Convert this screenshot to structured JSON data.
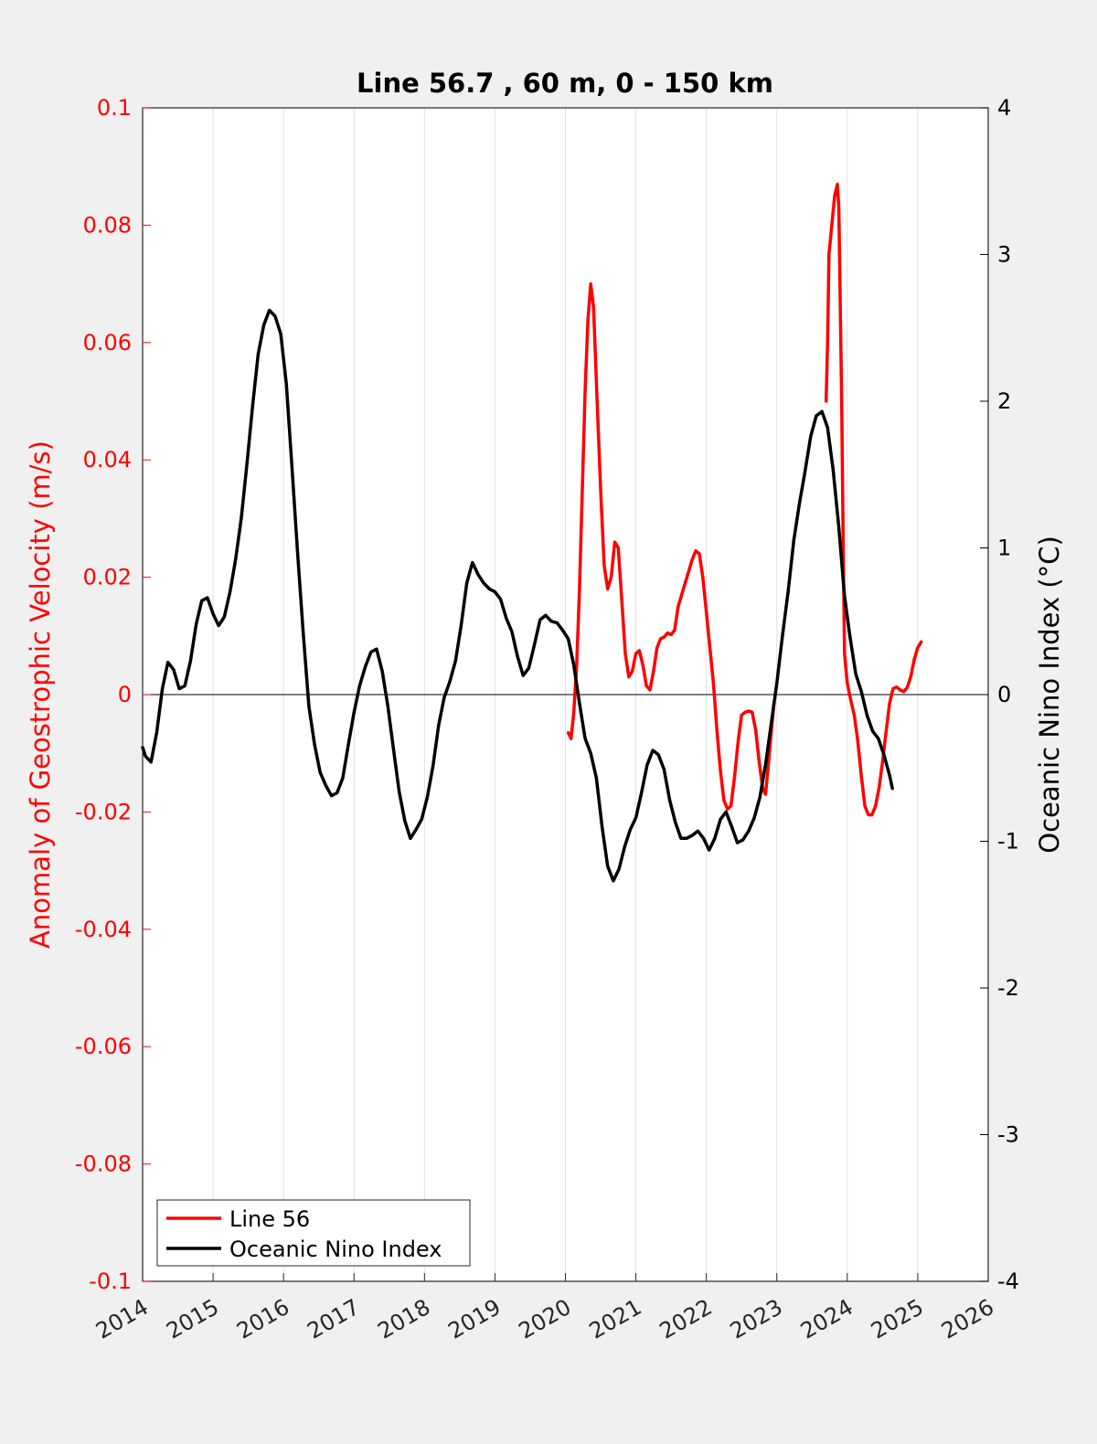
{
  "chart_data": {
    "type": "line",
    "title": "Line 56.7 , 60 m, 0 - 150 km",
    "xlim": [
      2014,
      2026
    ],
    "x_ticks": [
      "2014",
      "2015",
      "2016",
      "2017",
      "2018",
      "2019",
      "2020",
      "2021",
      "2022",
      "2023",
      "2024",
      "2025",
      "2026"
    ],
    "grid": "vertical",
    "legend_position": "bottom-left",
    "y_left": {
      "label": "Anomaly of Geostrophic Velocity (m/s)",
      "lim": [
        -0.1,
        0.1
      ],
      "ticks": [
        "0.1",
        "0.08",
        "0.06",
        "0.04",
        "0.02",
        "0",
        "-0.02",
        "-0.04",
        "-0.06",
        "-0.08",
        "-0.1"
      ],
      "color": "#ff0000"
    },
    "y_right": {
      "label": "Oceanic Nino Index (°C)",
      "lim": [
        -4,
        4
      ],
      "ticks": [
        "4",
        "3",
        "2",
        "1",
        "0",
        "-1",
        "-2",
        "-3",
        "-4"
      ],
      "color": "#000000"
    },
    "series": [
      {
        "name": "Line 56",
        "axis": "left",
        "color": "#ff0000",
        "segments": [
          [
            [
              2020.04,
              -0.0065
            ],
            [
              2020.08,
              -0.0075
            ],
            [
              2020.12,
              -0.003
            ],
            [
              2020.16,
              0.005
            ],
            [
              2020.2,
              0.018
            ],
            [
              2020.24,
              0.035
            ],
            [
              2020.28,
              0.052
            ],
            [
              2020.32,
              0.064
            ],
            [
              2020.36,
              0.07
            ],
            [
              2020.4,
              0.066
            ],
            [
              2020.45,
              0.05
            ],
            [
              2020.5,
              0.035
            ],
            [
              2020.55,
              0.022
            ],
            [
              2020.6,
              0.018
            ],
            [
              2020.65,
              0.02
            ],
            [
              2020.7,
              0.026
            ],
            [
              2020.75,
              0.025
            ],
            [
              2020.8,
              0.016
            ],
            [
              2020.85,
              0.007
            ],
            [
              2020.9,
              0.003
            ],
            [
              2020.95,
              0.004
            ],
            [
              2021.0,
              0.007
            ],
            [
              2021.05,
              0.0075
            ],
            [
              2021.1,
              0.005
            ],
            [
              2021.15,
              0.0015
            ],
            [
              2021.2,
              0.0008
            ],
            [
              2021.25,
              0.004
            ],
            [
              2021.3,
              0.008
            ],
            [
              2021.35,
              0.0095
            ],
            [
              2021.4,
              0.0098
            ],
            [
              2021.45,
              0.0105
            ],
            [
              2021.5,
              0.0102
            ],
            [
              2021.55,
              0.011
            ],
            [
              2021.6,
              0.015
            ],
            [
              2021.7,
              0.019
            ],
            [
              2021.8,
              0.023
            ],
            [
              2021.85,
              0.0245
            ],
            [
              2021.9,
              0.024
            ],
            [
              2021.95,
              0.02
            ],
            [
              2022.0,
              0.014
            ],
            [
              2022.05,
              0.008
            ],
            [
              2022.1,
              0.002
            ],
            [
              2022.15,
              -0.006
            ],
            [
              2022.2,
              -0.013
            ],
            [
              2022.25,
              -0.018
            ],
            [
              2022.3,
              -0.0195
            ],
            [
              2022.35,
              -0.019
            ],
            [
              2022.4,
              -0.014
            ],
            [
              2022.45,
              -0.008
            ],
            [
              2022.5,
              -0.0035
            ],
            [
              2022.55,
              -0.003
            ],
            [
              2022.6,
              -0.0028
            ],
            [
              2022.65,
              -0.003
            ],
            [
              2022.7,
              -0.006
            ],
            [
              2022.75,
              -0.0115
            ],
            [
              2022.8,
              -0.016
            ],
            [
              2022.84,
              -0.017
            ],
            [
              2022.88,
              -0.012
            ],
            [
              2022.92,
              -0.0065
            ],
            [
              2022.96,
              -0.0015
            ]
          ],
          [
            [
              2023.7,
              0.05
            ],
            [
              2023.72,
              0.06
            ],
            [
              2023.74,
              0.075
            ],
            [
              2023.78,
              0.08
            ],
            [
              2023.82,
              0.085
            ],
            [
              2023.86,
              0.087
            ],
            [
              2023.88,
              0.083
            ],
            [
              2023.92,
              0.05
            ],
            [
              2023.94,
              0.028
            ],
            [
              2023.96,
              0.007
            ],
            [
              2024.0,
              0.002
            ],
            [
              2024.05,
              -0.001
            ],
            [
              2024.1,
              -0.0035
            ],
            [
              2024.15,
              -0.008
            ],
            [
              2024.2,
              -0.014
            ],
            [
              2024.25,
              -0.019
            ],
            [
              2024.3,
              -0.0205
            ],
            [
              2024.35,
              -0.0205
            ],
            [
              2024.4,
              -0.019
            ],
            [
              2024.45,
              -0.016
            ],
            [
              2024.5,
              -0.0115
            ],
            [
              2024.55,
              -0.0065
            ],
            [
              2024.6,
              -0.0015
            ],
            [
              2024.65,
              0.001
            ],
            [
              2024.7,
              0.0013
            ],
            [
              2024.75,
              0.0008
            ],
            [
              2024.8,
              0.0005
            ],
            [
              2024.85,
              0.0012
            ],
            [
              2024.9,
              0.003
            ],
            [
              2024.95,
              0.006
            ],
            [
              2025.0,
              0.008
            ],
            [
              2025.05,
              0.009
            ]
          ]
        ]
      },
      {
        "name": "Oceanic Nino Index",
        "axis": "right",
        "color": "#000000",
        "segments": [
          [
            [
              2014.0,
              -0.36
            ],
            [
              2014.04,
              -0.42
            ],
            [
              2014.12,
              -0.46
            ],
            [
              2014.2,
              -0.26
            ],
            [
              2014.28,
              0.04
            ],
            [
              2014.36,
              0.22
            ],
            [
              2014.44,
              0.17
            ],
            [
              2014.52,
              0.04
            ],
            [
              2014.6,
              0.06
            ],
            [
              2014.68,
              0.23
            ],
            [
              2014.76,
              0.48
            ],
            [
              2014.84,
              0.64
            ],
            [
              2014.92,
              0.66
            ],
            [
              2015.0,
              0.55
            ],
            [
              2015.08,
              0.47
            ],
            [
              2015.16,
              0.53
            ],
            [
              2015.24,
              0.7
            ],
            [
              2015.32,
              0.92
            ],
            [
              2015.4,
              1.2
            ],
            [
              2015.48,
              1.57
            ],
            [
              2015.56,
              1.96
            ],
            [
              2015.64,
              2.32
            ],
            [
              2015.72,
              2.52
            ],
            [
              2015.8,
              2.62
            ],
            [
              2015.88,
              2.58
            ],
            [
              2015.96,
              2.46
            ],
            [
              2016.04,
              2.12
            ],
            [
              2016.12,
              1.55
            ],
            [
              2016.2,
              0.96
            ],
            [
              2016.28,
              0.42
            ],
            [
              2016.36,
              -0.08
            ],
            [
              2016.44,
              -0.34
            ],
            [
              2016.52,
              -0.53
            ],
            [
              2016.6,
              -0.62
            ],
            [
              2016.68,
              -0.69
            ],
            [
              2016.76,
              -0.67
            ],
            [
              2016.84,
              -0.57
            ],
            [
              2016.92,
              -0.34
            ],
            [
              2017.0,
              -0.12
            ],
            [
              2017.08,
              0.06
            ],
            [
              2017.16,
              0.19
            ],
            [
              2017.24,
              0.29
            ],
            [
              2017.32,
              0.31
            ],
            [
              2017.4,
              0.16
            ],
            [
              2017.48,
              -0.08
            ],
            [
              2017.56,
              -0.37
            ],
            [
              2017.64,
              -0.66
            ],
            [
              2017.72,
              -0.86
            ],
            [
              2017.8,
              -0.98
            ],
            [
              2017.88,
              -0.92
            ],
            [
              2017.96,
              -0.85
            ],
            [
              2018.04,
              -0.7
            ],
            [
              2018.12,
              -0.49
            ],
            [
              2018.2,
              -0.21
            ],
            [
              2018.28,
              -0.02
            ],
            [
              2018.36,
              0.09
            ],
            [
              2018.44,
              0.23
            ],
            [
              2018.52,
              0.47
            ],
            [
              2018.6,
              0.76
            ],
            [
              2018.68,
              0.9
            ],
            [
              2018.76,
              0.82
            ],
            [
              2018.84,
              0.76
            ],
            [
              2018.92,
              0.72
            ],
            [
              2019.0,
              0.7
            ],
            [
              2019.08,
              0.65
            ],
            [
              2019.16,
              0.52
            ],
            [
              2019.24,
              0.43
            ],
            [
              2019.32,
              0.26
            ],
            [
              2019.4,
              0.13
            ],
            [
              2019.48,
              0.18
            ],
            [
              2019.56,
              0.34
            ],
            [
              2019.64,
              0.51
            ],
            [
              2019.72,
              0.54
            ],
            [
              2019.8,
              0.5
            ],
            [
              2019.88,
              0.49
            ],
            [
              2019.96,
              0.44
            ],
            [
              2020.04,
              0.38
            ],
            [
              2020.12,
              0.2
            ],
            [
              2020.2,
              -0.06
            ],
            [
              2020.28,
              -0.3
            ],
            [
              2020.36,
              -0.4
            ],
            [
              2020.44,
              -0.57
            ],
            [
              2020.52,
              -0.9
            ],
            [
              2020.6,
              -1.17
            ],
            [
              2020.68,
              -1.27
            ],
            [
              2020.76,
              -1.19
            ],
            [
              2020.84,
              -1.04
            ],
            [
              2020.92,
              -0.92
            ],
            [
              2021.0,
              -0.84
            ],
            [
              2021.08,
              -0.67
            ],
            [
              2021.16,
              -0.48
            ],
            [
              2021.24,
              -0.38
            ],
            [
              2021.32,
              -0.41
            ],
            [
              2021.4,
              -0.51
            ],
            [
              2021.48,
              -0.72
            ],
            [
              2021.56,
              -0.87
            ],
            [
              2021.64,
              -0.98
            ],
            [
              2021.72,
              -0.98
            ],
            [
              2021.8,
              -0.96
            ],
            [
              2021.88,
              -0.93
            ],
            [
              2021.96,
              -0.98
            ],
            [
              2022.04,
              -1.06
            ],
            [
              2022.12,
              -0.98
            ],
            [
              2022.2,
              -0.85
            ],
            [
              2022.28,
              -0.8
            ],
            [
              2022.36,
              -0.9
            ],
            [
              2022.44,
              -1.01
            ],
            [
              2022.52,
              -0.99
            ],
            [
              2022.6,
              -0.93
            ],
            [
              2022.68,
              -0.84
            ],
            [
              2022.76,
              -0.7
            ],
            [
              2022.84,
              -0.48
            ],
            [
              2022.92,
              -0.2
            ],
            [
              2023.0,
              0.08
            ],
            [
              2023.08,
              0.4
            ],
            [
              2023.16,
              0.7
            ],
            [
              2023.24,
              1.05
            ],
            [
              2023.32,
              1.3
            ],
            [
              2023.4,
              1.52
            ],
            [
              2023.48,
              1.76
            ],
            [
              2023.56,
              1.9
            ],
            [
              2023.64,
              1.93
            ],
            [
              2023.72,
              1.82
            ],
            [
              2023.8,
              1.53
            ],
            [
              2023.88,
              1.14
            ],
            [
              2023.96,
              0.67
            ],
            [
              2024.04,
              0.39
            ],
            [
              2024.12,
              0.14
            ],
            [
              2024.2,
              0.02
            ],
            [
              2024.28,
              -0.14
            ],
            [
              2024.36,
              -0.25
            ],
            [
              2024.44,
              -0.3
            ],
            [
              2024.52,
              -0.41
            ],
            [
              2024.6,
              -0.55
            ],
            [
              2024.64,
              -0.64
            ]
          ]
        ]
      }
    ]
  }
}
